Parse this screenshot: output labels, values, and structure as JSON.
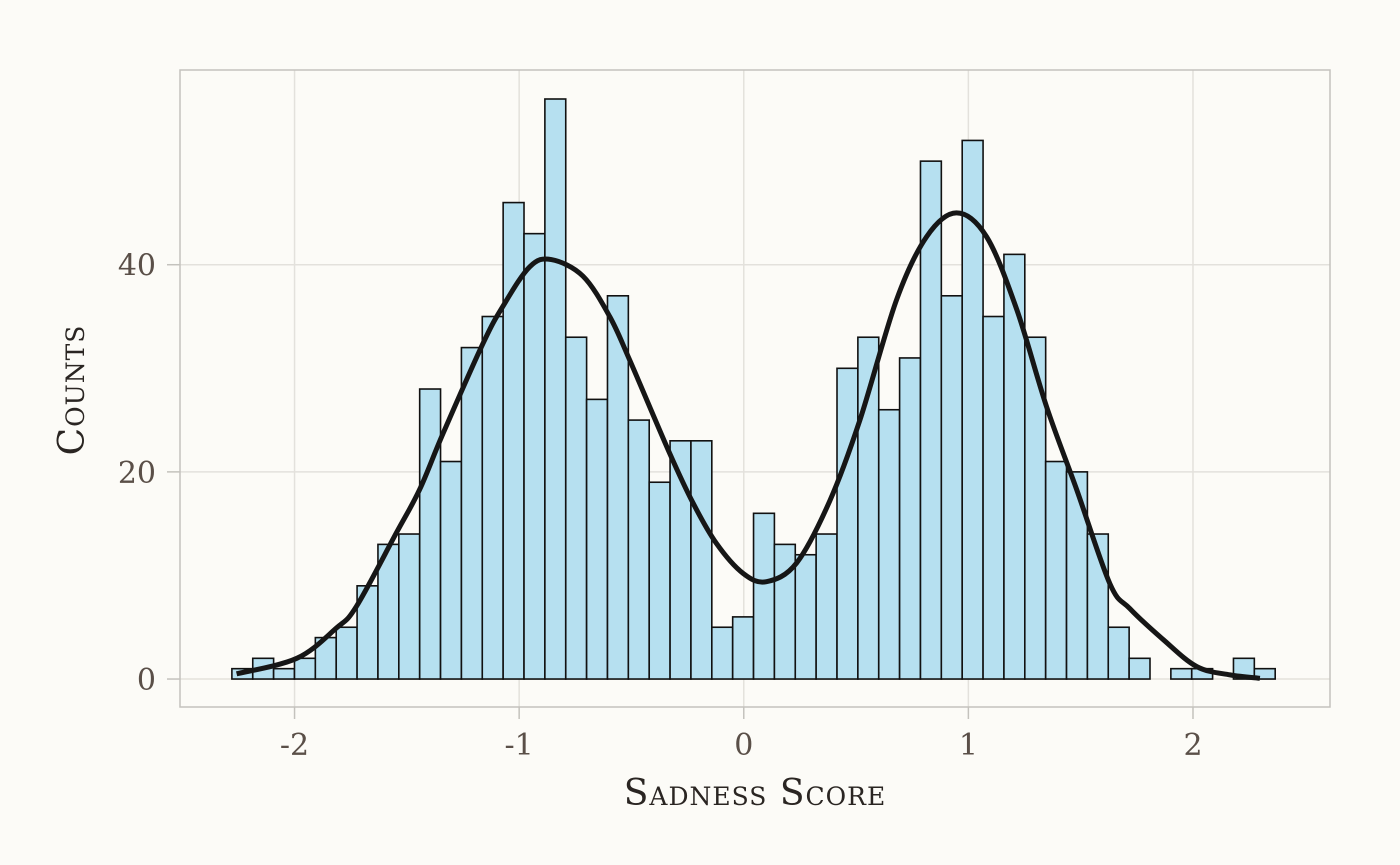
{
  "chart_data": {
    "type": "bar",
    "subtype": "histogram with density curve",
    "title": "",
    "xlabel": "Sadness Score",
    "ylabel": "Counts",
    "xlim": [
      -2.51,
      2.61
    ],
    "ylim": [
      -2.7,
      58.8
    ],
    "x_ticks": [
      "-2",
      "-1",
      "0",
      "1",
      "2"
    ],
    "x_tick_values": [
      -2,
      -1,
      0,
      1,
      2
    ],
    "y_ticks": [
      "0",
      "20",
      "40"
    ],
    "y_tick_values": [
      0,
      20,
      40
    ],
    "grid": true,
    "legend": "none",
    "bin_start": -2.279,
    "bin_width": 0.0929,
    "counts": [
      1,
      2,
      1,
      2,
      4,
      5,
      9,
      13,
      14,
      28,
      21,
      32,
      35,
      46,
      43,
      56,
      33,
      27,
      37,
      25,
      19,
      23,
      23,
      5,
      6,
      16,
      13,
      12,
      14,
      30,
      33,
      26,
      31,
      50,
      37,
      52,
      35,
      41,
      33,
      21,
      20,
      14,
      5,
      2,
      0,
      1,
      1,
      0,
      2,
      1
    ],
    "curve": {
      "x": [
        -2.258,
        -1.99,
        -1.815,
        -1.725,
        -1.547,
        -1.443,
        -1.339,
        -1.161,
        -1.072,
        -0.953,
        -0.857,
        -0.716,
        -0.597,
        -0.508,
        -0.33,
        -0.226,
        -0.122,
        -0.003,
        0.101,
        0.235,
        0.383,
        0.517,
        0.68,
        0.814,
        0.947,
        1.081,
        1.215,
        1.348,
        1.482,
        1.63,
        1.719,
        1.868,
        2.017,
        2.165,
        2.298
      ],
      "y": [
        0.5,
        2.0,
        4.9,
        7.0,
        14.1,
        18.3,
        23.7,
        32.4,
        36.0,
        39.8,
        40.5,
        38.9,
        35.0,
        30.8,
        21.8,
        17.0,
        13.1,
        10.2,
        9.4,
        11.2,
        17.2,
        25.0,
        36.6,
        42.7,
        45.0,
        42.7,
        35.7,
        26.3,
        18.3,
        9.2,
        6.8,
        3.8,
        1.2,
        0.4,
        0.07
      ]
    },
    "colors": {
      "bar_fill": "#b6e0f0",
      "bar_stroke": "#111111",
      "curve": "#161616",
      "grid": "#e3e1dc",
      "panel_border": "#c4c2bd",
      "background": "#fcfbf7"
    }
  }
}
